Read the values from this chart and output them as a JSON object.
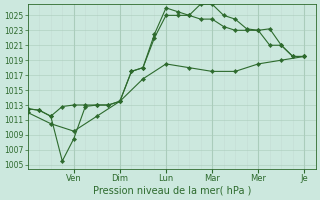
{
  "bg_color": "#cce8de",
  "grid_color_major": "#aaccbb",
  "grid_color_minor": "#c4ddd5",
  "line_color": "#2d6a2d",
  "title": "Pression niveau de la mer( hPa )",
  "ylim": [
    1004.5,
    1026.5
  ],
  "yticks": [
    1005,
    1007,
    1009,
    1011,
    1013,
    1015,
    1017,
    1019,
    1021,
    1023,
    1025
  ],
  "day_labels": [
    "Ven",
    "Dim",
    "Lun",
    "Mar",
    "Mer",
    "Je"
  ],
  "day_positions": [
    2.0,
    4.0,
    6.0,
    8.0,
    10.0,
    12.0
  ],
  "line1_x": [
    0.0,
    0.5,
    1.0,
    1.5,
    2.0,
    2.5,
    3.0,
    3.5,
    4.0,
    4.5,
    5.0,
    5.5,
    6.0,
    6.5,
    7.0,
    7.5,
    8.0,
    8.5,
    9.0,
    9.5,
    10.0,
    10.5,
    11.0,
    11.5,
    12.0
  ],
  "line1_y": [
    1012.5,
    1012.3,
    1011.5,
    1005.5,
    1008.5,
    1012.8,
    1013.0,
    1013.0,
    1013.5,
    1017.5,
    1018.0,
    1022.5,
    1026.0,
    1025.5,
    1025.0,
    1026.5,
    1026.5,
    1025.0,
    1024.5,
    1023.2,
    1023.0,
    1021.0,
    1021.0,
    1019.5,
    1019.5
  ],
  "line2_x": [
    0.0,
    0.5,
    1.0,
    1.5,
    2.0,
    2.5,
    3.0,
    3.5,
    4.0,
    4.5,
    5.0,
    5.5,
    6.0,
    6.5,
    7.0,
    7.5,
    8.0,
    8.5,
    9.0,
    9.5,
    10.0,
    10.5,
    11.0,
    11.5,
    12.0
  ],
  "line2_y": [
    1012.5,
    1012.3,
    1011.5,
    1012.8,
    1013.0,
    1013.0,
    1013.0,
    1013.0,
    1013.5,
    1017.5,
    1018.0,
    1022.0,
    1025.0,
    1025.0,
    1025.0,
    1024.5,
    1024.5,
    1023.5,
    1023.0,
    1023.0,
    1023.0,
    1023.2,
    1021.0,
    1019.5,
    1019.5
  ],
  "line3_x": [
    0.0,
    1.0,
    2.0,
    3.0,
    4.0,
    5.0,
    6.0,
    7.0,
    8.0,
    9.0,
    10.0,
    11.0,
    12.0
  ],
  "line3_y": [
    1012.0,
    1010.5,
    1009.5,
    1011.5,
    1013.5,
    1016.5,
    1018.5,
    1018.0,
    1017.5,
    1017.5,
    1018.5,
    1019.0,
    1019.5
  ],
  "xlabel_fontsize": 7.0,
  "ytick_fontsize": 5.5,
  "xtick_fontsize": 6.0
}
